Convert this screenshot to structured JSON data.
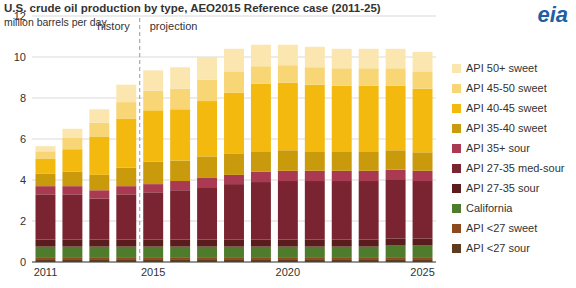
{
  "chart_data": {
    "type": "bar",
    "title": "U.S. crude oil production by type, AEO2015 Reference case (2011-25)",
    "subtitle": "million barrels per day",
    "logo": "eia",
    "annotations": [
      "history",
      "projection"
    ],
    "stacked": true,
    "grid": true,
    "legend": "right",
    "categories": [
      "2011",
      null,
      null,
      null,
      "2015",
      null,
      null,
      null,
      null,
      "2020",
      null,
      null,
      null,
      null,
      "2025"
    ],
    "ylim": [
      0,
      12
    ],
    "yticks": [
      0,
      2,
      4,
      6,
      8,
      10,
      12
    ],
    "series": [
      {
        "name": "API <27 sour",
        "color": "#5e3b1f",
        "values": [
          0.1,
          0.1,
          0.1,
          0.1,
          0.1,
          0.1,
          0.1,
          0.1,
          0.1,
          0.1,
          0.1,
          0.1,
          0.1,
          0.1,
          0.1
        ]
      },
      {
        "name": "API <27 sweet",
        "color": "#8c4a1c",
        "values": [
          0.1,
          0.1,
          0.1,
          0.1,
          0.1,
          0.1,
          0.1,
          0.1,
          0.1,
          0.1,
          0.1,
          0.1,
          0.1,
          0.1,
          0.1
        ]
      },
      {
        "name": "California",
        "color": "#4f7c2c",
        "values": [
          0.55,
          0.55,
          0.55,
          0.55,
          0.55,
          0.55,
          0.55,
          0.55,
          0.55,
          0.55,
          0.55,
          0.55,
          0.55,
          0.6,
          0.6
        ]
      },
      {
        "name": "API 27-35 sour",
        "color": "#5a1c1c",
        "values": [
          0.35,
          0.35,
          0.35,
          0.35,
          0.35,
          0.35,
          0.35,
          0.35,
          0.35,
          0.35,
          0.35,
          0.35,
          0.35,
          0.35,
          0.35
        ]
      },
      {
        "name": "API 27-35 med-sour",
        "color": "#7a2431",
        "values": [
          2.2,
          2.2,
          2.0,
          2.2,
          2.3,
          2.4,
          2.55,
          2.7,
          2.8,
          2.85,
          2.85,
          2.85,
          2.85,
          2.85,
          2.8
        ]
      },
      {
        "name": "API 35+ sour",
        "color": "#a93a52",
        "values": [
          0.4,
          0.4,
          0.4,
          0.4,
          0.4,
          0.45,
          0.45,
          0.45,
          0.5,
          0.5,
          0.5,
          0.5,
          0.5,
          0.5,
          0.5
        ]
      },
      {
        "name": "API 35-40 sweet",
        "color": "#c99a0c",
        "values": [
          0.6,
          0.7,
          0.75,
          0.9,
          1.1,
          1.0,
          1.05,
          1.05,
          1.0,
          1.0,
          0.95,
          0.95,
          0.95,
          0.95,
          0.9
        ]
      },
      {
        "name": "API 40-45 sweet",
        "color": "#f3b90f",
        "values": [
          0.75,
          1.1,
          1.85,
          2.4,
          2.5,
          2.5,
          2.7,
          2.95,
          3.3,
          3.3,
          3.25,
          3.2,
          3.2,
          3.15,
          3.1
        ]
      },
      {
        "name": "API 45-50 sweet",
        "color": "#f8d676",
        "values": [
          0.35,
          0.55,
          0.7,
          0.8,
          0.95,
          1.0,
          1.05,
          1.05,
          0.85,
          0.85,
          0.85,
          0.85,
          0.85,
          0.85,
          0.85
        ]
      },
      {
        "name": "API 50+ sweet",
        "color": "#fbe6b0",
        "values": [
          0.25,
          0.45,
          0.65,
          0.85,
          1.0,
          1.05,
          1.1,
          1.1,
          1.05,
          1.0,
          1.0,
          0.95,
          0.95,
          0.95,
          0.95
        ]
      }
    ]
  }
}
